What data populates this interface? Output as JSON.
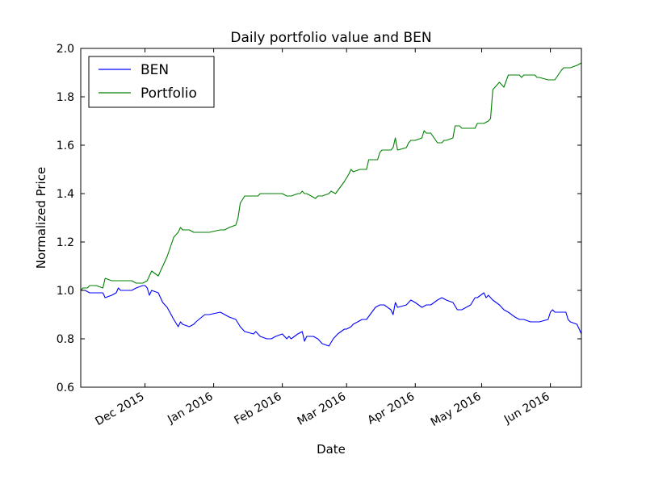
{
  "chart_data": {
    "type": "line",
    "title": "Daily portfolio value and BEN",
    "xlabel": "Date",
    "ylabel": "Normalized Price",
    "xlim": [
      "2015-11-02",
      "2016-06-15"
    ],
    "ylim": [
      0.6,
      2.0
    ],
    "yticks": [
      0.6,
      0.8,
      1.0,
      1.2,
      1.4,
      1.6,
      1.8,
      2.0
    ],
    "yticklabels": [
      "0.6",
      "0.8",
      "1.0",
      "1.2",
      "1.4",
      "1.6",
      "1.8",
      "2.0"
    ],
    "xticks": [
      "2015-12-01",
      "2016-01-01",
      "2016-02-01",
      "2016-03-01",
      "2016-04-01",
      "2016-05-01",
      "2016-06-01"
    ],
    "xticklabels": [
      "Dec 2015",
      "Jan 2016",
      "Feb 2016",
      "Mar 2016",
      "Apr 2016",
      "May 2016",
      "Jun 2016"
    ],
    "grid": false,
    "legend_position": "upper-left",
    "series": [
      {
        "name": "BEN",
        "color": "#0000ff",
        "points": [
          [
            "2015-11-02",
            1.0
          ],
          [
            "2015-11-04",
            1.0
          ],
          [
            "2015-11-06",
            0.99
          ],
          [
            "2015-11-09",
            0.99
          ],
          [
            "2015-11-12",
            0.99
          ],
          [
            "2015-11-13",
            0.97
          ],
          [
            "2015-11-16",
            0.98
          ],
          [
            "2015-11-18",
            0.99
          ],
          [
            "2015-11-19",
            1.01
          ],
          [
            "2015-11-20",
            1.0
          ],
          [
            "2015-11-25",
            1.0
          ],
          [
            "2015-11-27",
            1.01
          ],
          [
            "2015-11-30",
            1.02
          ],
          [
            "2015-12-01",
            1.02
          ],
          [
            "2015-12-02",
            1.01
          ],
          [
            "2015-12-03",
            0.98
          ],
          [
            "2015-12-04",
            1.0
          ],
          [
            "2015-12-07",
            0.99
          ],
          [
            "2015-12-09",
            0.95
          ],
          [
            "2015-12-11",
            0.93
          ],
          [
            "2015-12-14",
            0.88
          ],
          [
            "2015-12-16",
            0.85
          ],
          [
            "2015-12-17",
            0.87
          ],
          [
            "2015-12-18",
            0.86
          ],
          [
            "2015-12-21",
            0.85
          ],
          [
            "2015-12-23",
            0.86
          ],
          [
            "2015-12-24",
            0.87
          ],
          [
            "2015-12-28",
            0.9
          ],
          [
            "2015-12-30",
            0.9
          ],
          [
            "2016-01-04",
            0.91
          ],
          [
            "2016-01-06",
            0.9
          ],
          [
            "2016-01-08",
            0.89
          ],
          [
            "2016-01-11",
            0.88
          ],
          [
            "2016-01-13",
            0.85
          ],
          [
            "2016-01-15",
            0.83
          ],
          [
            "2016-01-19",
            0.82
          ],
          [
            "2016-01-20",
            0.83
          ],
          [
            "2016-01-22",
            0.81
          ],
          [
            "2016-01-25",
            0.8
          ],
          [
            "2016-01-27",
            0.8
          ],
          [
            "2016-01-29",
            0.81
          ],
          [
            "2016-02-01",
            0.82
          ],
          [
            "2016-02-03",
            0.8
          ],
          [
            "2016-02-04",
            0.81
          ],
          [
            "2016-02-05",
            0.8
          ],
          [
            "2016-02-08",
            0.82
          ],
          [
            "2016-02-10",
            0.83
          ],
          [
            "2016-02-11",
            0.79
          ],
          [
            "2016-02-12",
            0.81
          ],
          [
            "2016-02-15",
            0.81
          ],
          [
            "2016-02-17",
            0.8
          ],
          [
            "2016-02-19",
            0.78
          ],
          [
            "2016-02-22",
            0.77
          ],
          [
            "2016-02-24",
            0.8
          ],
          [
            "2016-02-26",
            0.82
          ],
          [
            "2016-02-29",
            0.84
          ],
          [
            "2016-03-01",
            0.84
          ],
          [
            "2016-03-03",
            0.85
          ],
          [
            "2016-03-04",
            0.86
          ],
          [
            "2016-03-08",
            0.88
          ],
          [
            "2016-03-10",
            0.88
          ],
          [
            "2016-03-14",
            0.93
          ],
          [
            "2016-03-16",
            0.94
          ],
          [
            "2016-03-18",
            0.94
          ],
          [
            "2016-03-21",
            0.92
          ],
          [
            "2016-03-22",
            0.9
          ],
          [
            "2016-03-23",
            0.95
          ],
          [
            "2016-03-24",
            0.93
          ],
          [
            "2016-03-28",
            0.94
          ],
          [
            "2016-03-29",
            0.95
          ],
          [
            "2016-03-30",
            0.96
          ],
          [
            "2016-04-01",
            0.95
          ],
          [
            "2016-04-04",
            0.93
          ],
          [
            "2016-04-06",
            0.94
          ],
          [
            "2016-04-08",
            0.94
          ],
          [
            "2016-04-11",
            0.96
          ],
          [
            "2016-04-13",
            0.97
          ],
          [
            "2016-04-15",
            0.96
          ],
          [
            "2016-04-18",
            0.95
          ],
          [
            "2016-04-20",
            0.92
          ],
          [
            "2016-04-22",
            0.92
          ],
          [
            "2016-04-26",
            0.94
          ],
          [
            "2016-04-28",
            0.97
          ],
          [
            "2016-04-29",
            0.97
          ],
          [
            "2016-05-02",
            0.99
          ],
          [
            "2016-05-03",
            0.97
          ],
          [
            "2016-05-04",
            0.98
          ],
          [
            "2016-05-06",
            0.96
          ],
          [
            "2016-05-09",
            0.94
          ],
          [
            "2016-05-11",
            0.92
          ],
          [
            "2016-05-13",
            0.91
          ],
          [
            "2016-05-16",
            0.89
          ],
          [
            "2016-05-18",
            0.88
          ],
          [
            "2016-05-20",
            0.88
          ],
          [
            "2016-05-23",
            0.87
          ],
          [
            "2016-05-25",
            0.87
          ],
          [
            "2016-05-27",
            0.87
          ],
          [
            "2016-05-31",
            0.88
          ],
          [
            "2016-06-01",
            0.91
          ],
          [
            "2016-06-02",
            0.92
          ],
          [
            "2016-06-03",
            0.91
          ],
          [
            "2016-06-06",
            0.91
          ],
          [
            "2016-06-08",
            0.91
          ],
          [
            "2016-06-09",
            0.88
          ],
          [
            "2016-06-10",
            0.87
          ],
          [
            "2016-06-13",
            0.86
          ],
          [
            "2016-06-14",
            0.84
          ],
          [
            "2016-06-15",
            0.82
          ]
        ]
      },
      {
        "name": "Portfolio",
        "color": "#008000",
        "points": [
          [
            "2015-11-02",
            1.0
          ],
          [
            "2015-11-03",
            1.01
          ],
          [
            "2015-11-05",
            1.01
          ],
          [
            "2015-11-06",
            1.02
          ],
          [
            "2015-11-09",
            1.02
          ],
          [
            "2015-11-12",
            1.01
          ],
          [
            "2015-11-13",
            1.05
          ],
          [
            "2015-11-16",
            1.04
          ],
          [
            "2015-11-18",
            1.04
          ],
          [
            "2015-11-20",
            1.04
          ],
          [
            "2015-11-23",
            1.04
          ],
          [
            "2015-11-25",
            1.04
          ],
          [
            "2015-11-27",
            1.03
          ],
          [
            "2015-11-30",
            1.03
          ],
          [
            "2015-12-02",
            1.04
          ],
          [
            "2015-12-03",
            1.06
          ],
          [
            "2015-12-04",
            1.08
          ],
          [
            "2015-12-07",
            1.06
          ],
          [
            "2015-12-09",
            1.1
          ],
          [
            "2015-12-11",
            1.14
          ],
          [
            "2015-12-14",
            1.22
          ],
          [
            "2015-12-16",
            1.24
          ],
          [
            "2015-12-17",
            1.26
          ],
          [
            "2015-12-18",
            1.25
          ],
          [
            "2015-12-21",
            1.25
          ],
          [
            "2015-12-23",
            1.24
          ],
          [
            "2015-12-28",
            1.24
          ],
          [
            "2015-12-30",
            1.24
          ],
          [
            "2016-01-04",
            1.25
          ],
          [
            "2016-01-06",
            1.25
          ],
          [
            "2016-01-08",
            1.26
          ],
          [
            "2016-01-11",
            1.27
          ],
          [
            "2016-01-12",
            1.3
          ],
          [
            "2016-01-13",
            1.36
          ],
          [
            "2016-01-15",
            1.39
          ],
          [
            "2016-01-19",
            1.39
          ],
          [
            "2016-01-21",
            1.39
          ],
          [
            "2016-01-22",
            1.4
          ],
          [
            "2016-01-25",
            1.4
          ],
          [
            "2016-01-27",
            1.4
          ],
          [
            "2016-01-29",
            1.4
          ],
          [
            "2016-02-01",
            1.4
          ],
          [
            "2016-02-03",
            1.39
          ],
          [
            "2016-02-05",
            1.39
          ],
          [
            "2016-02-08",
            1.4
          ],
          [
            "2016-02-09",
            1.4
          ],
          [
            "2016-02-10",
            1.41
          ],
          [
            "2016-02-11",
            1.4
          ],
          [
            "2016-02-12",
            1.4
          ],
          [
            "2016-02-16",
            1.38
          ],
          [
            "2016-02-17",
            1.39
          ],
          [
            "2016-02-19",
            1.39
          ],
          [
            "2016-02-22",
            1.4
          ],
          [
            "2016-02-23",
            1.41
          ],
          [
            "2016-02-25",
            1.4
          ],
          [
            "2016-02-29",
            1.45
          ],
          [
            "2016-03-02",
            1.48
          ],
          [
            "2016-03-03",
            1.5
          ],
          [
            "2016-03-04",
            1.49
          ],
          [
            "2016-03-07",
            1.5
          ],
          [
            "2016-03-09",
            1.5
          ],
          [
            "2016-03-10",
            1.5
          ],
          [
            "2016-03-11",
            1.54
          ],
          [
            "2016-03-14",
            1.54
          ],
          [
            "2016-03-15",
            1.54
          ],
          [
            "2016-03-16",
            1.57
          ],
          [
            "2016-03-17",
            1.58
          ],
          [
            "2016-03-18",
            1.58
          ],
          [
            "2016-03-21",
            1.58
          ],
          [
            "2016-03-22",
            1.59
          ],
          [
            "2016-03-23",
            1.63
          ],
          [
            "2016-03-24",
            1.58
          ],
          [
            "2016-03-28",
            1.59
          ],
          [
            "2016-03-29",
            1.61
          ],
          [
            "2016-03-30",
            1.62
          ],
          [
            "2016-04-01",
            1.62
          ],
          [
            "2016-04-04",
            1.63
          ],
          [
            "2016-04-05",
            1.66
          ],
          [
            "2016-04-06",
            1.65
          ],
          [
            "2016-04-08",
            1.65
          ],
          [
            "2016-04-11",
            1.61
          ],
          [
            "2016-04-12",
            1.61
          ],
          [
            "2016-04-13",
            1.61
          ],
          [
            "2016-04-14",
            1.62
          ],
          [
            "2016-04-15",
            1.62
          ],
          [
            "2016-04-18",
            1.63
          ],
          [
            "2016-04-19",
            1.68
          ],
          [
            "2016-04-21",
            1.68
          ],
          [
            "2016-04-22",
            1.67
          ],
          [
            "2016-04-26",
            1.67
          ],
          [
            "2016-04-28",
            1.67
          ],
          [
            "2016-04-29",
            1.69
          ],
          [
            "2016-05-02",
            1.69
          ],
          [
            "2016-05-04",
            1.7
          ],
          [
            "2016-05-05",
            1.71
          ],
          [
            "2016-05-06",
            1.83
          ],
          [
            "2016-05-09",
            1.86
          ],
          [
            "2016-05-10",
            1.85
          ],
          [
            "2016-05-11",
            1.84
          ],
          [
            "2016-05-13",
            1.89
          ],
          [
            "2016-05-16",
            1.89
          ],
          [
            "2016-05-18",
            1.89
          ],
          [
            "2016-05-19",
            1.88
          ],
          [
            "2016-05-20",
            1.89
          ],
          [
            "2016-05-23",
            1.89
          ],
          [
            "2016-05-25",
            1.89
          ],
          [
            "2016-05-26",
            1.88
          ],
          [
            "2016-05-27",
            1.88
          ],
          [
            "2016-05-31",
            1.87
          ],
          [
            "2016-06-02",
            1.87
          ],
          [
            "2016-06-03",
            1.87
          ],
          [
            "2016-06-06",
            1.91
          ],
          [
            "2016-06-07",
            1.92
          ],
          [
            "2016-06-09",
            1.92
          ],
          [
            "2016-06-10",
            1.92
          ],
          [
            "2016-06-13",
            1.93
          ],
          [
            "2016-06-15",
            1.94
          ]
        ]
      }
    ]
  }
}
